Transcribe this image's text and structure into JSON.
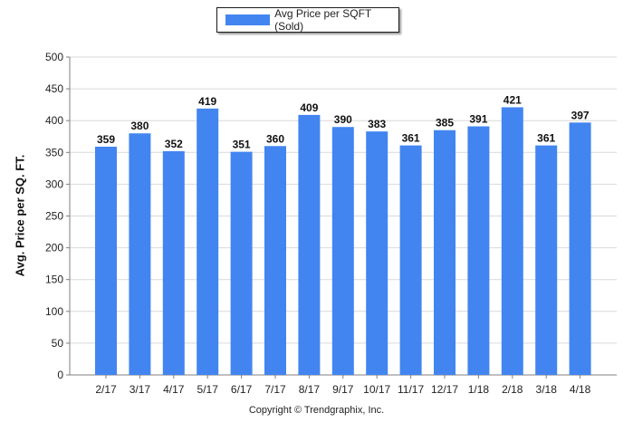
{
  "chart_data": {
    "type": "bar",
    "categories": [
      "2/17",
      "3/17",
      "4/17",
      "5/17",
      "6/17",
      "7/17",
      "8/17",
      "9/17",
      "10/17",
      "11/17",
      "12/17",
      "1/18",
      "2/18",
      "3/18",
      "4/18"
    ],
    "series": [
      {
        "name": "Avg Price per SQFT (Sold)",
        "values": [
          359,
          380,
          352,
          419,
          351,
          360,
          409,
          390,
          383,
          361,
          385,
          391,
          421,
          361,
          397
        ]
      }
    ],
    "ylabel": "Avg. Price per SQ. FT.",
    "xlabel": "",
    "ylim": [
      0,
      500
    ],
    "yticks": [
      0,
      50,
      100,
      150,
      200,
      250,
      300,
      350,
      400,
      450,
      500
    ],
    "grid": true,
    "legend_position": "top-center",
    "data_labels": true,
    "colors": {
      "bar": "#4285f0",
      "grid": "#d9d9d9",
      "axis": "#7f7f7f"
    }
  },
  "footer": {
    "copyright": "Copyright © Trendgraphix, Inc."
  }
}
